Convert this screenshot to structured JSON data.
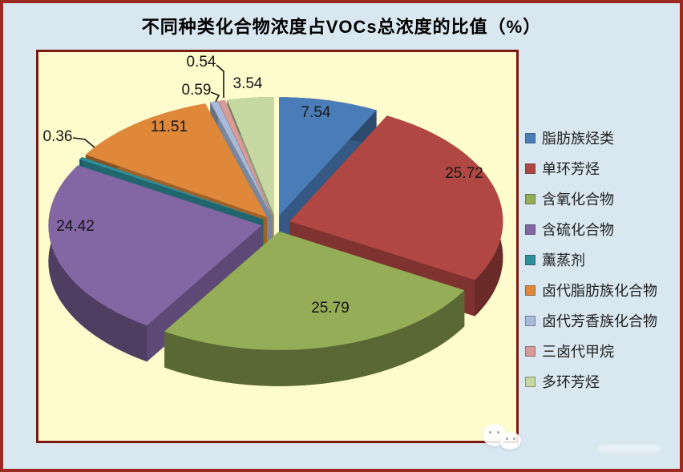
{
  "chart_data": {
    "type": "pie",
    "style": "3d-exploded",
    "title": "不同种类化合物浓度占VOCs总浓度的比值（%）",
    "unit": "%",
    "legend_position": "right",
    "categories": [
      "脂肪族烃类",
      "单环芳烃",
      "含氧化合物",
      "含硫化合物",
      "薰蒸剂",
      "卤代脂肪族化合物",
      "卤代芳香族化合物",
      "三卤代甲烷",
      "多环芳烃"
    ],
    "values": [
      7.54,
      25.72,
      25.79,
      24.42,
      0.36,
      11.51,
      0.59,
      0.54,
      3.54
    ],
    "data_labels": [
      "7.54",
      "25.72",
      "25.79",
      "24.42",
      "0.36",
      "11.51",
      "0.59",
      "0.54",
      "3.54"
    ],
    "colors": [
      "#4a7cb8",
      "#b04742",
      "#94ad56",
      "#8366a4",
      "#2e8e9a",
      "#e0883a",
      "#a8bad9",
      "#d89b98",
      "#c6d8a2"
    ],
    "label_color": "#161616",
    "plot_background": "#fefccd",
    "page_background": "#d9e7f0",
    "plot_border_color": "#7a1a12",
    "outer_border_color": "#9c2a22"
  }
}
